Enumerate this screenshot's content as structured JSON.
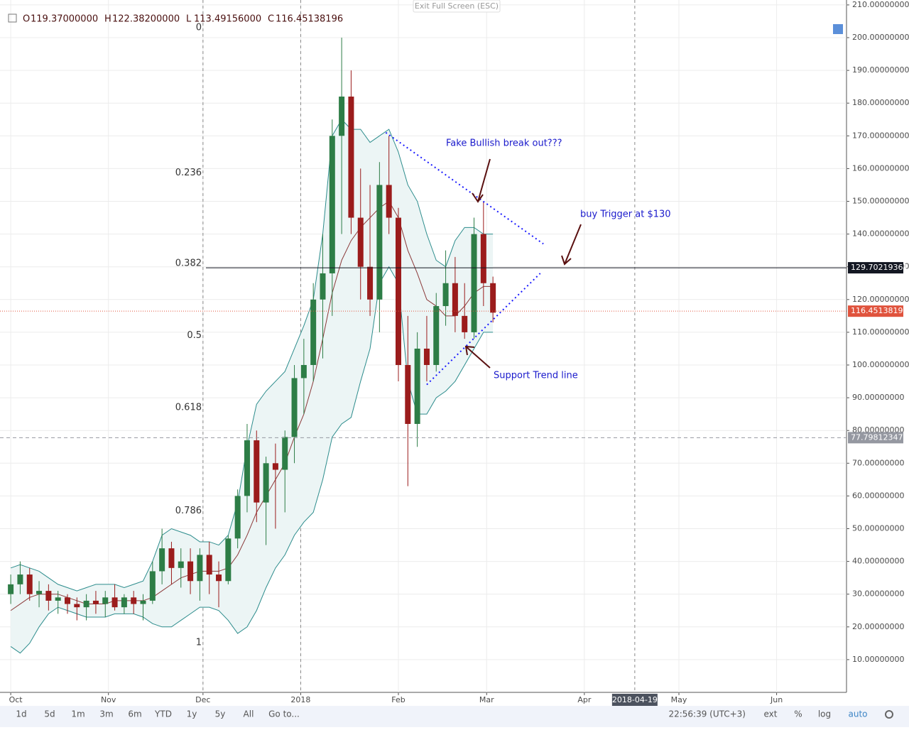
{
  "chart_data": {
    "type": "candlestick",
    "top_button": "Exit Full Screen (ESC)",
    "ohlc_header": [
      {
        "key": "O",
        "value": "119.37000000"
      },
      {
        "key": "H",
        "value": "122.38200000"
      },
      {
        "key": "L",
        "value": "113.49156000"
      },
      {
        "key": "C",
        "value": "116.45138196"
      }
    ],
    "x": [
      0,
      3,
      6,
      9,
      12,
      15,
      18,
      21,
      24,
      27,
      30,
      33,
      36,
      39,
      42,
      45,
      48,
      51,
      54,
      57,
      60,
      63,
      66,
      69,
      72,
      75,
      78,
      81,
      84,
      87,
      90,
      93,
      96,
      99,
      102,
      105,
      108,
      111,
      114,
      117,
      120,
      123,
      126,
      129,
      132,
      135,
      138,
      141,
      144,
      147,
      150,
      153
    ],
    "open": [
      30,
      33,
      36,
      30,
      31,
      28,
      29,
      27,
      26,
      28,
      27,
      29,
      26,
      29,
      27,
      28,
      37,
      44,
      38,
      40,
      34,
      42,
      36,
      34,
      47,
      60,
      77,
      58,
      70,
      68,
      78,
      96,
      100,
      120,
      128,
      170,
      182,
      145,
      130,
      120,
      155,
      145,
      100,
      82,
      105,
      100,
      118,
      125,
      115,
      110,
      140,
      125
    ],
    "high": [
      36,
      40,
      38,
      34,
      33,
      31,
      30,
      29,
      30,
      31,
      31,
      33,
      30,
      31,
      30,
      40,
      50,
      46,
      44,
      44,
      44,
      46,
      40,
      48,
      62,
      82,
      80,
      72,
      76,
      80,
      100,
      108,
      125,
      140,
      175,
      200,
      190,
      160,
      155,
      162,
      170,
      148,
      115,
      110,
      115,
      122,
      135,
      133,
      125,
      145,
      150,
      127
    ],
    "low": [
      27,
      30,
      28,
      26,
      25,
      24,
      24,
      22,
      22,
      24,
      23,
      25,
      24,
      24,
      22,
      27,
      33,
      33,
      32,
      30,
      28,
      30,
      26,
      33,
      44,
      55,
      52,
      45,
      50,
      55,
      70,
      85,
      95,
      102,
      115,
      140,
      140,
      120,
      115,
      110,
      140,
      95,
      63,
      75,
      95,
      98,
      112,
      110,
      108,
      108,
      118,
      113
    ],
    "close": [
      33,
      36,
      30,
      31,
      28,
      29,
      27,
      26,
      28,
      27,
      29,
      26,
      29,
      27,
      28,
      37,
      44,
      38,
      40,
      34,
      42,
      36,
      34,
      47,
      60,
      77,
      58,
      70,
      68,
      78,
      96,
      100,
      120,
      128,
      170,
      182,
      145,
      130,
      120,
      155,
      145,
      100,
      82,
      105,
      100,
      118,
      125,
      115,
      110,
      140,
      125,
      116
    ],
    "up_color": "#2d7d46",
    "down_color": "#9b1c1c",
    "bands": {
      "upper": [
        38,
        39,
        38,
        37,
        35,
        33,
        32,
        31,
        32,
        33,
        33,
        33,
        32,
        33,
        34,
        40,
        48,
        50,
        49,
        48,
        46,
        46,
        45,
        48,
        58,
        75,
        88,
        92,
        95,
        98,
        105,
        112,
        120,
        140,
        170,
        175,
        172,
        172,
        168,
        170,
        172,
        165,
        155,
        150,
        140,
        132,
        130,
        138,
        142,
        142,
        140,
        140
      ],
      "mid": [
        25,
        27,
        29,
        30,
        30,
        30,
        29,
        28,
        27,
        27,
        27,
        28,
        28,
        28,
        28,
        29,
        31,
        33,
        35,
        36,
        37,
        37,
        37,
        38,
        42,
        48,
        55,
        60,
        65,
        70,
        78,
        85,
        95,
        108,
        122,
        132,
        138,
        142,
        145,
        148,
        150,
        145,
        135,
        128,
        120,
        118,
        115,
        115,
        118,
        122,
        124,
        124
      ],
      "lower": [
        14,
        12,
        15,
        20,
        24,
        26,
        25,
        24,
        23,
        23,
        23,
        24,
        24,
        24,
        23,
        21,
        20,
        20,
        22,
        24,
        26,
        26,
        25,
        22,
        18,
        20,
        25,
        32,
        38,
        42,
        48,
        52,
        55,
        65,
        78,
        82,
        84,
        95,
        105,
        125,
        130,
        125,
        95,
        85,
        85,
        90,
        92,
        95,
        100,
        105,
        110,
        110
      ],
      "line_color": "#2c8c8c",
      "mid_color": "#8b3a3a",
      "fill": "#ecf5f5"
    },
    "fib_levels": [
      {
        "label": "0",
        "price": 203
      },
      {
        "label": "0.236",
        "price": 158.7
      },
      {
        "label": "0.382",
        "price": 131
      },
      {
        "label": "0.5",
        "price": 109
      },
      {
        "label": "0.618",
        "price": 87
      },
      {
        "label": "0.786",
        "price": 55.4
      },
      {
        "label": "1",
        "price": 15.2
      }
    ],
    "price_lines": [
      {
        "value": 129.70219361,
        "color": "#131722",
        "style": "solid"
      },
      {
        "value": 116.45138196,
        "color": "#e0533d",
        "style": "dotted"
      },
      {
        "value": 77.79812347,
        "color": "#9598a1",
        "style": "dashed"
      }
    ],
    "trendlines": [
      {
        "x": [
          119,
          169
        ],
        "y": [
          171,
          137
        ]
      },
      {
        "x": [
          132,
          168
        ],
        "y": [
          94,
          128
        ]
      }
    ],
    "trend_color": "#1a1aff",
    "annotations": [
      "Fake Bullish break out???",
      "buy Trigger at $130",
      "Support Trend line"
    ],
    "xlim": [
      -0.7,
      264.5
    ],
    "xticks": [
      {
        "value": 0,
        "label": "Oct"
      },
      {
        "value": 31,
        "label": "Nov"
      },
      {
        "value": 61,
        "label": "Dec"
      },
      {
        "value": 92,
        "label": "2018"
      },
      {
        "value": 123,
        "label": "Feb"
      },
      {
        "value": 151,
        "label": "Mar"
      },
      {
        "value": 182,
        "label": "Apr"
      },
      {
        "value": 212,
        "label": "May"
      },
      {
        "value": 243,
        "label": "Jun"
      }
    ],
    "x_cursor": {
      "value": 198,
      "label": "2018-04-19"
    },
    "ylim": [
      0,
      211.5
    ],
    "yticks": [
      {
        "value": 10,
        "label": "10.00000000"
      },
      {
        "value": 20,
        "label": "20.00000000"
      },
      {
        "value": 30,
        "label": "30.00000000"
      },
      {
        "value": 40,
        "label": "40.00000000"
      },
      {
        "value": 50,
        "label": "50.00000000"
      },
      {
        "value": 60,
        "label": "60.00000000"
      },
      {
        "value": 70,
        "label": "70.00000000"
      },
      {
        "value": 80,
        "label": "80.00000000"
      },
      {
        "value": 90,
        "label": "90.00000000"
      },
      {
        "value": 100,
        "label": "100.00000000"
      },
      {
        "value": 110,
        "label": "110.00000000"
      },
      {
        "value": 120,
        "label": "120.00000000"
      },
      {
        "value": 130,
        "label": "130.00000000"
      },
      {
        "value": 140,
        "label": "140.00000000"
      },
      {
        "value": 150,
        "label": "150.00000000"
      },
      {
        "value": 160,
        "label": "160.00000000"
      },
      {
        "value": 170,
        "label": "170.00000000"
      },
      {
        "value": 180,
        "label": "180.00000000"
      },
      {
        "value": 190,
        "label": "190.00000000"
      },
      {
        "value": 200,
        "label": "200.00000000"
      },
      {
        "value": 210,
        "label": "210.00000000"
      }
    ],
    "grid": true,
    "toolbar_left": [
      "1d",
      "5d",
      "1m",
      "3m",
      "6m",
      "YTD",
      "1y",
      "5y",
      "All",
      "Go to..."
    ],
    "clock": "22:56:39 (UTC+3)",
    "toolbar_right": [
      "ext",
      "%",
      "log",
      "auto"
    ]
  }
}
